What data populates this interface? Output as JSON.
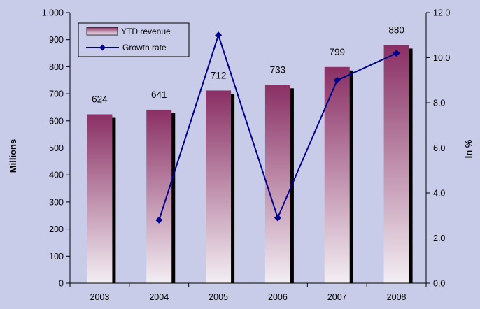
{
  "chart_data": {
    "type": "bar",
    "categories": [
      "2003",
      "2004",
      "2005",
      "2006",
      "2007",
      "2008"
    ],
    "series": [
      {
        "name": "YTD revenue",
        "type": "bar",
        "axis": "left",
        "values": [
          624,
          641,
          712,
          733,
          799,
          880
        ]
      },
      {
        "name": "Growth rate",
        "type": "line",
        "axis": "right",
        "values": [
          null,
          2.8,
          11.0,
          2.9,
          9.0,
          10.2
        ]
      }
    ],
    "data_labels": [
      "624",
      "641",
      "712",
      "733",
      "799",
      "880"
    ],
    "ylabel": "Millions",
    "y2label": "In %",
    "ylim": [
      0,
      1000
    ],
    "y2lim": [
      0,
      12
    ],
    "yticks": [
      "0",
      "100",
      "200",
      "300",
      "400",
      "500",
      "600",
      "700",
      "800",
      "900",
      "1,000"
    ],
    "y2ticks": [
      "0.0",
      "2.0",
      "4.0",
      "6.0",
      "8.0",
      "10.0",
      "12.0"
    ],
    "legend": "top-left",
    "grid": false,
    "colors": {
      "background": "#c9cce9",
      "bar_top": "#8a2f64",
      "bar_bottom": "#f3eef3",
      "bar_shadow": "#000000",
      "line": "#00008b",
      "axis": "#000000"
    }
  }
}
